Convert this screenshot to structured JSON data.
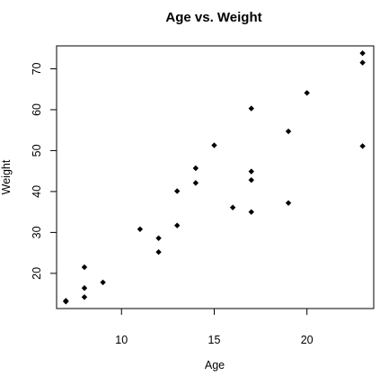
{
  "chart_data": {
    "type": "scatter",
    "title": "Age vs. Weight",
    "xlabel": "Age",
    "ylabel": "Weight",
    "xlim": [
      6.5,
      23.6
    ],
    "ylim": [
      11.4,
      75.6
    ],
    "x_ticks": [
      10,
      15,
      20
    ],
    "y_ticks": [
      20,
      30,
      40,
      50,
      60,
      70
    ],
    "marker": "filled-diamond",
    "marker_color": "#000000",
    "grid": false,
    "points": [
      {
        "x": 7,
        "y": 13.3
      },
      {
        "x": 7,
        "y": 13.1
      },
      {
        "x": 8,
        "y": 14.2
      },
      {
        "x": 8,
        "y": 16.4
      },
      {
        "x": 8,
        "y": 21.5
      },
      {
        "x": 9,
        "y": 17.8
      },
      {
        "x": 11,
        "y": 30.8
      },
      {
        "x": 12,
        "y": 28.6
      },
      {
        "x": 12,
        "y": 25.2
      },
      {
        "x": 13,
        "y": 31.7
      },
      {
        "x": 13,
        "y": 40.1
      },
      {
        "x": 14,
        "y": 45.7
      },
      {
        "x": 14,
        "y": 42.1
      },
      {
        "x": 15,
        "y": 51.3
      },
      {
        "x": 16,
        "y": 36.1
      },
      {
        "x": 17,
        "y": 35.0
      },
      {
        "x": 17,
        "y": 42.8
      },
      {
        "x": 17,
        "y": 44.9
      },
      {
        "x": 17,
        "y": 60.3
      },
      {
        "x": 19,
        "y": 54.7
      },
      {
        "x": 19,
        "y": 37.2
      },
      {
        "x": 20,
        "y": 64.1
      },
      {
        "x": 23,
        "y": 51.1
      },
      {
        "x": 23,
        "y": 71.5
      },
      {
        "x": 23,
        "y": 73.8
      }
    ]
  }
}
